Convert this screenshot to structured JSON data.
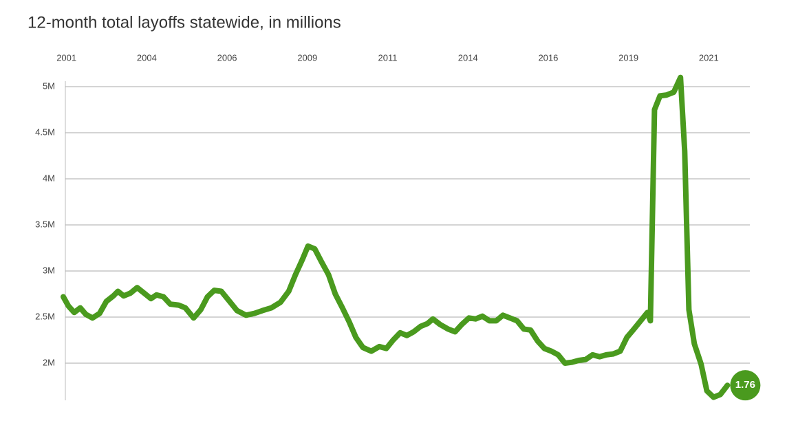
{
  "chart_data": {
    "type": "line",
    "title": "12-month total layoffs statewide, in millions",
    "xlim": [
      2000.9,
      2022.3
    ],
    "xticks": [
      2001,
      {
        "value": 2003.5,
        "label": "2004"
      },
      2006,
      {
        "value": 2008.5,
        "label": "2009"
      },
      2011,
      {
        "value": 2013.5,
        "label": "2014"
      },
      2016,
      {
        "value": 2018.5,
        "label": "2019"
      },
      2021
    ],
    "ylim": [
      1.6,
      5.2
    ],
    "yticks": [
      {
        "value": 2,
        "label": "2M"
      },
      {
        "value": 2.5,
        "label": "2.5M"
      },
      {
        "value": 3,
        "label": "3M"
      },
      {
        "value": 3.5,
        "label": "3.5M"
      },
      {
        "value": 4,
        "label": "4M"
      },
      {
        "value": 4.5,
        "label": "4.5M"
      },
      {
        "value": 5,
        "label": "5M"
      }
    ],
    "grid": true,
    "series": [
      {
        "color": "#4a9a1e",
        "x": [
          2000.9,
          2001.06,
          2001.24,
          2001.43,
          2001.6,
          2001.81,
          2002.03,
          2002.24,
          2002.46,
          2002.6,
          2002.78,
          2002.99,
          2003.2,
          2003.42,
          2003.63,
          2003.8,
          2004.02,
          2004.23,
          2004.49,
          2004.7,
          2004.96,
          2005.18,
          2005.39,
          2005.6,
          2005.82,
          2006.03,
          2006.31,
          2006.59,
          2006.85,
          2007.1,
          2007.38,
          2007.66,
          2007.92,
          2008.13,
          2008.34,
          2008.52,
          2008.73,
          2008.94,
          2009.16,
          2009.37,
          2009.59,
          2009.8,
          2010.01,
          2010.23,
          2010.49,
          2010.74,
          2010.96,
          2011.17,
          2011.39,
          2011.6,
          2011.81,
          2012.03,
          2012.24,
          2012.41,
          2012.63,
          2012.88,
          2013.1,
          2013.31,
          2013.53,
          2013.74,
          2013.95,
          2014.17,
          2014.38,
          2014.59,
          2014.81,
          2015.03,
          2015.24,
          2015.45,
          2015.67,
          2015.88,
          2016.1,
          2016.31,
          2016.52,
          2016.74,
          2016.95,
          2017.17,
          2017.38,
          2017.6,
          2017.81,
          2018.02,
          2018.24,
          2018.45,
          2018.67,
          2018.88,
          2019.09,
          2019.18,
          2019.31,
          2019.48,
          2019.69,
          2019.91,
          2020.12,
          2020.25,
          2020.38,
          2020.55,
          2020.76,
          2020.94,
          2021.15,
          2021.36,
          2021.58
        ],
        "values": [
          2.72,
          2.62,
          2.55,
          2.6,
          2.53,
          2.49,
          2.54,
          2.67,
          2.73,
          2.78,
          2.73,
          2.76,
          2.82,
          2.76,
          2.7,
          2.74,
          2.72,
          2.64,
          2.63,
          2.6,
          2.49,
          2.58,
          2.72,
          2.79,
          2.78,
          2.69,
          2.57,
          2.52,
          2.54,
          2.57,
          2.6,
          2.66,
          2.78,
          2.96,
          3.12,
          3.27,
          3.24,
          3.1,
          2.96,
          2.75,
          2.6,
          2.45,
          2.28,
          2.17,
          2.13,
          2.18,
          2.16,
          2.25,
          2.33,
          2.3,
          2.34,
          2.4,
          2.43,
          2.48,
          2.42,
          2.37,
          2.34,
          2.42,
          2.49,
          2.48,
          2.51,
          2.46,
          2.46,
          2.52,
          2.49,
          2.46,
          2.37,
          2.36,
          2.24,
          2.16,
          2.13,
          2.09,
          2.0,
          2.01,
          2.03,
          2.04,
          2.09,
          2.07,
          2.09,
          2.1,
          2.13,
          2.28,
          2.37,
          2.46,
          2.55,
          2.46,
          4.75,
          4.9,
          4.91,
          4.94,
          5.1,
          4.3,
          2.58,
          2.21,
          1.99,
          1.7,
          1.63,
          1.66,
          1.76
        ]
      }
    ]
  }
}
